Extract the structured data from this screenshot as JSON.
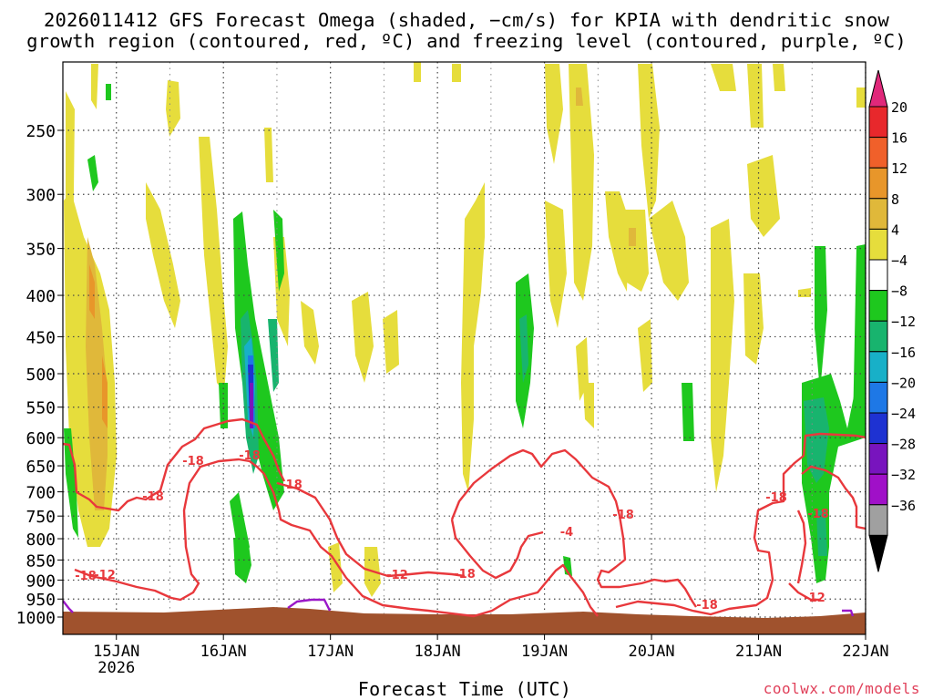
{
  "chart_data": {
    "type": "heatmap",
    "title_lines": [
      "2026011412 GFS Forecast Omega (shaded, −cm/s) for KPIA with dendritic snow",
      "growth region (contoured, red, ºC) and freezing level (contoured, purple, ºC)"
    ],
    "xlabel": "Forecast Time (UTC)",
    "ylabel": "",
    "x_ticks": [
      "15JAN",
      "16JAN",
      "17JAN",
      "18JAN",
      "19JAN",
      "20JAN",
      "21JAN",
      "22JAN"
    ],
    "x_tick_sublabel": "2026",
    "x_range_days": [
      14.5,
      22.0
    ],
    "y_ticks": [
      250,
      300,
      350,
      400,
      450,
      500,
      550,
      600,
      650,
      700,
      750,
      800,
      850,
      900,
      950,
      1000
    ],
    "y_range_hpa": [
      200,
      1000
    ],
    "y_scale": "log",
    "grid": true,
    "colorbar": {
      "labels": [
        "20",
        "16",
        "12",
        "8",
        "4",
        "−4",
        "−8",
        "−12",
        "−16",
        "−20",
        "−24",
        "−28",
        "−32",
        "−36"
      ],
      "colors": [
        "#e8282c",
        "#f0602a",
        "#e8962a",
        "#e0b83a",
        "#e6dd3c",
        "#ffffff",
        "#1ec81e",
        "#18b46e",
        "#18b0c8",
        "#1e78e6",
        "#1e32d2",
        "#7814be",
        "#a010c8",
        "#a0a0a0"
      ],
      "top_arrow_color": "#e0287a",
      "bottom_arrow_color": "#000000"
    },
    "contour_labels": [
      "-18",
      "-12",
      "-18",
      "-18",
      "-18",
      "-18",
      "-18",
      "-4",
      "-18",
      "-18",
      "-18",
      "-18",
      "-12",
      "-12"
    ],
    "terrain_color": "#a0522d",
    "dsg_contour_color": "#e8383c",
    "freezing_contour_color": "#9a18c8"
  },
  "credit": "coolwx.com/models"
}
